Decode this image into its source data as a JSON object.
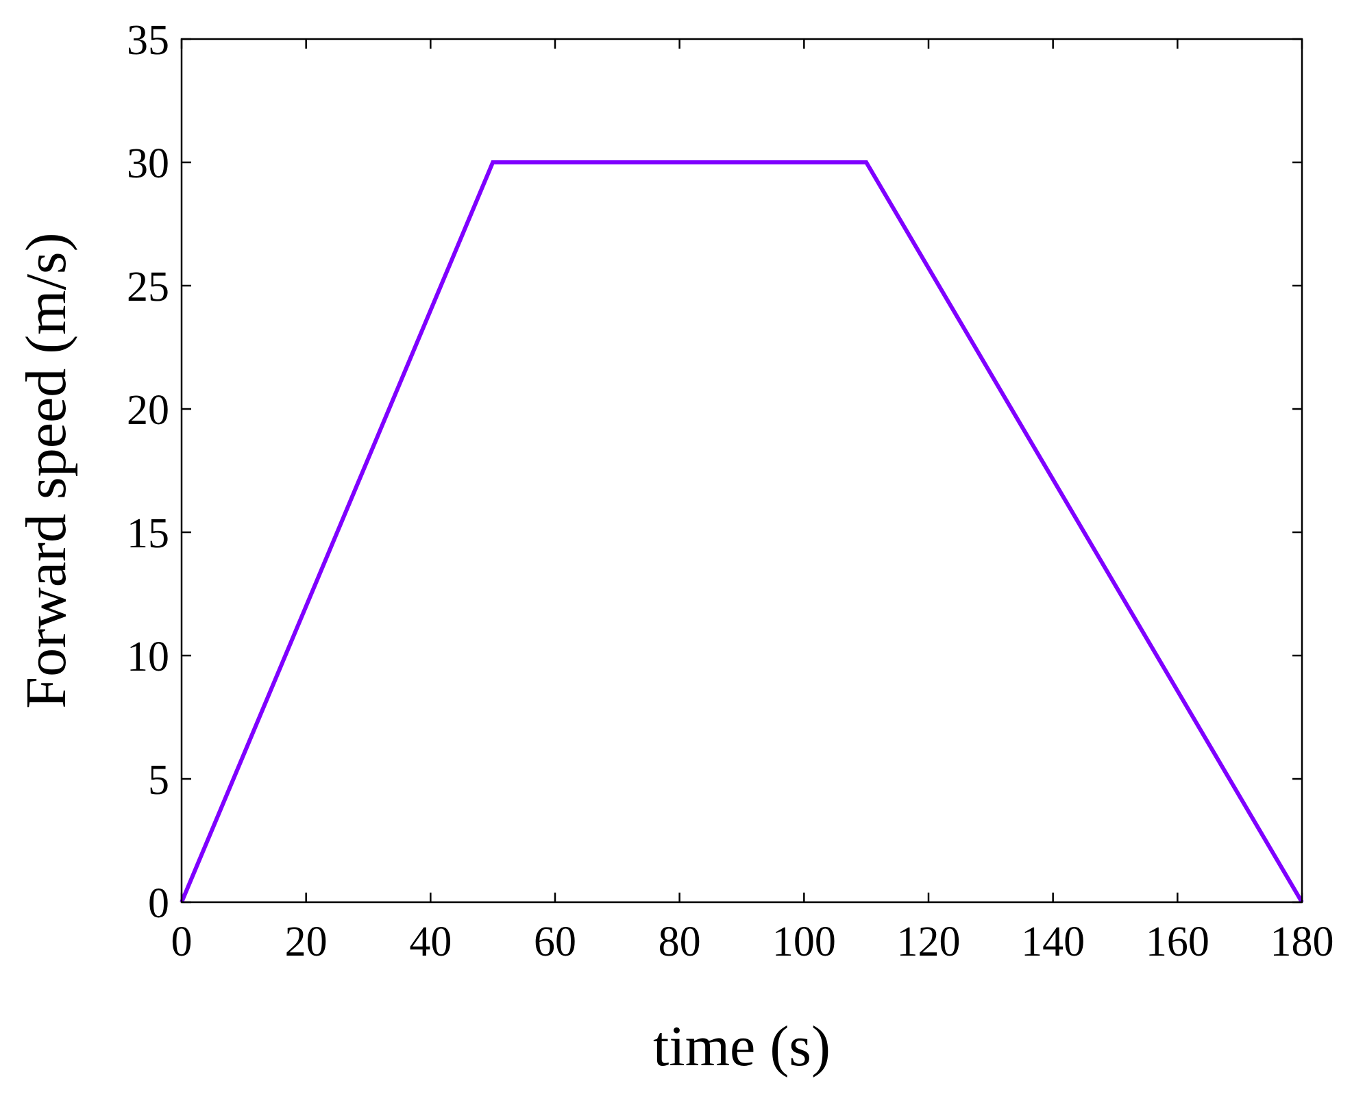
{
  "chart_data": {
    "type": "line",
    "title": "",
    "xlabel": "time (s)",
    "ylabel": "Forward speed (m/s)",
    "xlim": [
      0,
      180
    ],
    "ylim": [
      0,
      35
    ],
    "xticks": [
      0,
      20,
      40,
      60,
      80,
      100,
      120,
      140,
      160,
      180
    ],
    "yticks": [
      0,
      5,
      10,
      15,
      20,
      25,
      30,
      35
    ],
    "xtick_labels": [
      "0",
      "20",
      "40",
      "60",
      "80",
      "100",
      "120",
      "140",
      "160",
      "180"
    ],
    "ytick_labels": [
      "0",
      "5",
      "10",
      "15",
      "20",
      "25",
      "30",
      "35"
    ],
    "grid": false,
    "legend": "none",
    "series": [
      {
        "color": "#7f00ff",
        "x": [
          0,
          50,
          110,
          180
        ],
        "y": [
          0,
          30,
          30,
          0
        ]
      }
    ]
  }
}
